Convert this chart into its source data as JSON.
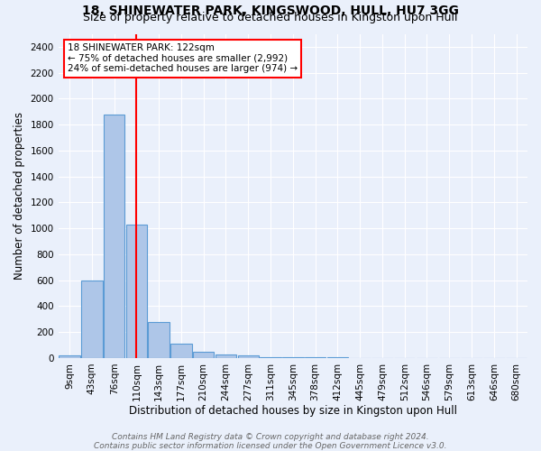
{
  "title1": "18, SHINEWATER PARK, KINGSWOOD, HULL, HU7 3GG",
  "title2": "Size of property relative to detached houses in Kingston upon Hull",
  "xlabel": "Distribution of detached houses by size in Kingston upon Hull",
  "ylabel": "Number of detached properties",
  "bar_labels": [
    "9sqm",
    "43sqm",
    "76sqm",
    "110sqm",
    "143sqm",
    "177sqm",
    "210sqm",
    "244sqm",
    "277sqm",
    "311sqm",
    "345sqm",
    "378sqm",
    "412sqm",
    "445sqm",
    "479sqm",
    "512sqm",
    "546sqm",
    "579sqm",
    "613sqm",
    "646sqm",
    "680sqm"
  ],
  "bar_values": [
    20,
    600,
    1880,
    1030,
    280,
    110,
    45,
    25,
    20,
    5,
    5,
    5,
    5,
    0,
    0,
    0,
    0,
    0,
    0,
    0,
    0
  ],
  "bar_color": "#aec6e8",
  "bar_edge_color": "#5b9bd5",
  "vline_x": 3,
  "vline_color": "red",
  "annotation_text": "18 SHINEWATER PARK: 122sqm\n← 75% of detached houses are smaller (2,992)\n24% of semi-detached houses are larger (974) →",
  "annotation_box_color": "white",
  "annotation_box_edge": "red",
  "ylim": [
    0,
    2500
  ],
  "yticks": [
    0,
    200,
    400,
    600,
    800,
    1000,
    1200,
    1400,
    1600,
    1800,
    2000,
    2200,
    2400
  ],
  "bg_color": "#eaf0fb",
  "footer1": "Contains HM Land Registry data © Crown copyright and database right 2024.",
  "footer2": "Contains public sector information licensed under the Open Government Licence v3.0.",
  "title1_fontsize": 10,
  "title2_fontsize": 9,
  "xlabel_fontsize": 8.5,
  "ylabel_fontsize": 8.5,
  "tick_fontsize": 7.5,
  "footer_fontsize": 6.5
}
